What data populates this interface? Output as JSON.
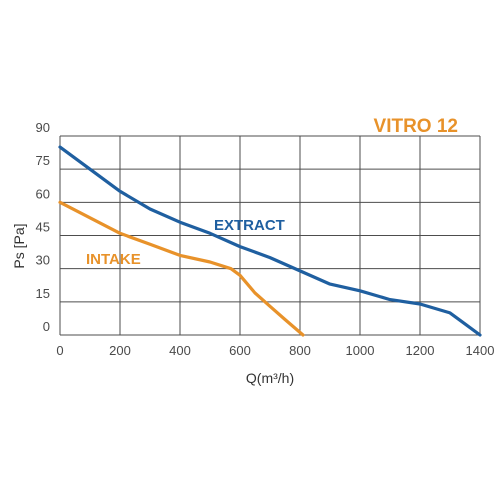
{
  "chart_data": {
    "type": "line",
    "title": "VITRO 12",
    "xlabel": "Q(m³/h)",
    "ylabel": "Ps [Pa]",
    "xlim": [
      0,
      1400
    ],
    "ylim": [
      0,
      90
    ],
    "xticks": [
      0,
      200,
      400,
      600,
      800,
      1000,
      1200,
      1400
    ],
    "yticks": [
      0,
      15,
      30,
      45,
      60,
      75,
      90
    ],
    "grid": true,
    "colors": {
      "title": "#e8922a",
      "grid": "#4d4d4d"
    },
    "series": [
      {
        "name": "EXTRACT",
        "color": "#1f5fa0",
        "x": [
          0,
          100,
          200,
          300,
          400,
          500,
          600,
          700,
          800,
          900,
          1000,
          1100,
          1200,
          1300,
          1350,
          1400
        ],
        "y": [
          85,
          75,
          65,
          57,
          51,
          46,
          40,
          35,
          29,
          23,
          20,
          16,
          14,
          10,
          5,
          0
        ]
      },
      {
        "name": "INTAKE",
        "color": "#e8922a",
        "x": [
          0,
          100,
          200,
          300,
          400,
          500,
          570,
          600,
          650,
          700,
          750,
          810
        ],
        "y": [
          60,
          53,
          46,
          41,
          36,
          33,
          30,
          27,
          19,
          13,
          7,
          0
        ]
      }
    ]
  }
}
